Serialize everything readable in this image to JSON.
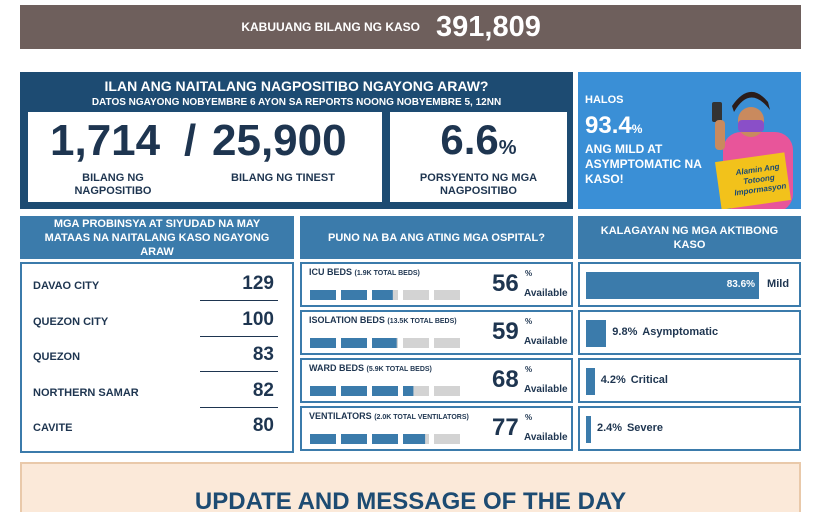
{
  "total": {
    "label": "KABUUANG BILANG NG KASO",
    "value": "391,809"
  },
  "today": {
    "title": "ILAN ANG NAITALANG NAGPOSITIBO NGAYONG ARAW?",
    "subtitle": "DATOS NGAYONG NOBYEMBRE 6 AYON SA REPORTS NOONG NOBYEMBRE 5, 12NN",
    "positive": {
      "value": "1,714",
      "label": "BILANG NG NAGPOSITIBO"
    },
    "separator": "/",
    "tested": {
      "value": "25,900",
      "label": "BILANG NG TINEST"
    },
    "rate": {
      "value": "6.6",
      "unit": "%",
      "label": "PORSYENTO NG MGA NAGPOSITIBO"
    }
  },
  "hero": {
    "pre": "HALOS",
    "value": "93.4",
    "unit": "%",
    "text": "ANG MILD AT ASYMPTOMATIC NA KASO!",
    "badge": "Alamin Ang Totoong Impormasyon"
  },
  "provinces": {
    "title": "MGA PROBINSYA AT SIYUDAD NA MAY MATAAS NA NAITALANG KASO NGAYONG ARAW",
    "rows": [
      {
        "name": "DAVAO CITY",
        "value": 129
      },
      {
        "name": "QUEZON CITY",
        "value": 100
      },
      {
        "name": "QUEZON",
        "value": 83
      },
      {
        "name": "NORTHERN SAMAR",
        "value": 82
      },
      {
        "name": "CAVITE",
        "value": 80
      }
    ]
  },
  "hospitals": {
    "title": "PUNO NA BA ANG ATING MGA OSPITAL?",
    "items": [
      {
        "name": "ICU BEDS",
        "total": "(1.9K TOTAL BEDS)",
        "value": 56,
        "unit": "%",
        "note": "Available"
      },
      {
        "name": "ISOLATION BEDS",
        "total": "(13.5K TOTAL BEDS)",
        "value": 59,
        "unit": "%",
        "note": "Available"
      },
      {
        "name": "WARD BEDS",
        "total": "(5.9K TOTAL BEDS)",
        "value": 68,
        "unit": "%",
        "note": "Available"
      },
      {
        "name": "VENTILATORS",
        "total": "(2.0K TOTAL VENTILATORS)",
        "value": 77,
        "unit": "%",
        "note": "Available"
      }
    ]
  },
  "status": {
    "title": "KALAGAYAN NG MGA AKTIBONG KASO",
    "items": [
      {
        "name": "Mild",
        "value": 83.6,
        "label": "83.6%"
      },
      {
        "name": "Asymptomatic",
        "value": 9.8,
        "label": "9.8%"
      },
      {
        "name": "Critical",
        "value": 4.2,
        "label": "4.2%"
      },
      {
        "name": "Severe",
        "value": 2.4,
        "label": "2.4%"
      }
    ]
  },
  "message": {
    "title": "UPDATE AND MESSAGE OF THE DAY"
  }
}
